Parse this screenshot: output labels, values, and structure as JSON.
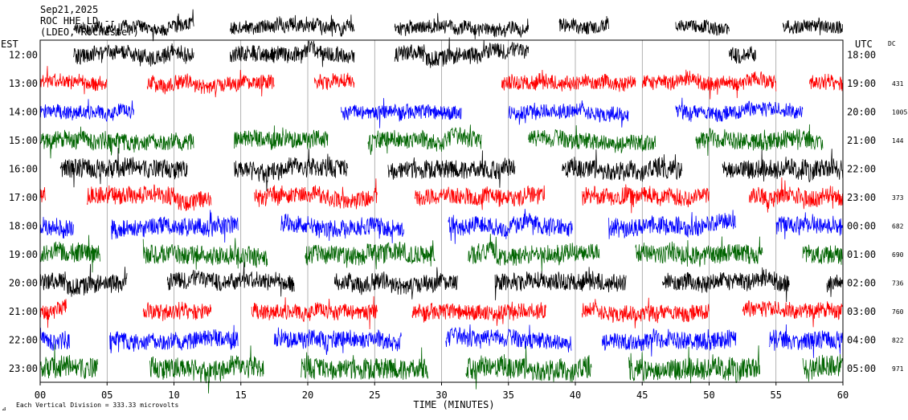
{
  "header": {
    "date": "Sep21,2025",
    "station": "ROC HHE LD --",
    "network": "(LDEO, Rochester)"
  },
  "labels": {
    "left_axis": "EST",
    "right_axis": "UTC",
    "dc_header": "DC",
    "x_axis_title": "TIME (MINUTES)",
    "footer_note": "Each Vertical Division =  333.33 microvolts"
  },
  "colors": {
    "black": "#000000",
    "red": "#ff0000",
    "blue": "#0000ff",
    "green": "#006400",
    "grid": "#808080"
  },
  "chart_data": {
    "type": "line",
    "title": "Sep21,2025  ROC HHE LD --  (LDEO, Rochester)",
    "xlabel": "TIME (MINUTES)",
    "xlim": [
      0,
      60
    ],
    "x_ticks": [
      "00",
      "05",
      "10",
      "15",
      "20",
      "25",
      "30",
      "35",
      "40",
      "45",
      "50",
      "55",
      "60"
    ],
    "rows": [
      {
        "est": "",
        "utc": "",
        "dc": "",
        "color": "black",
        "amplitude": 0.45,
        "segments": [
          [
            2.5,
            11.5
          ],
          [
            14.2,
            23.5
          ],
          [
            26.5,
            36.5
          ],
          [
            38.8,
            42.5
          ],
          [
            47.5,
            51.5
          ],
          [
            55.5,
            60
          ]
        ]
      },
      {
        "est": "12:00",
        "utc": "18:00",
        "dc": "",
        "color": "black",
        "amplitude": 0.55,
        "segments": [
          [
            2.5,
            11.5
          ],
          [
            14.2,
            23.5
          ],
          [
            26.5,
            36.5
          ],
          [
            51.5,
            53.5
          ]
        ]
      },
      {
        "est": "13:00",
        "utc": "19:00",
        "dc": "431",
        "color": "red",
        "amplitude": 0.5,
        "segments": [
          [
            0,
            5
          ],
          [
            8,
            17.5
          ],
          [
            20.5,
            23.5
          ],
          [
            34.5,
            44.5
          ],
          [
            45,
            55
          ],
          [
            57.5,
            60
          ]
        ]
      },
      {
        "est": "14:00",
        "utc": "20:00",
        "dc": "1005",
        "color": "blue",
        "amplitude": 0.5,
        "segments": [
          [
            0,
            7
          ],
          [
            22.5,
            31.5
          ],
          [
            35,
            44
          ],
          [
            47.5,
            57
          ]
        ]
      },
      {
        "est": "15:00",
        "utc": "21:00",
        "dc": "144",
        "color": "green",
        "amplitude": 0.6,
        "segments": [
          [
            0,
            11.5
          ],
          [
            14.5,
            21.5
          ],
          [
            24.5,
            33
          ],
          [
            36.5,
            46
          ],
          [
            49,
            58.5
          ]
        ]
      },
      {
        "est": "16:00",
        "utc": "22:00",
        "dc": "",
        "color": "black",
        "amplitude": 0.65,
        "segments": [
          [
            1.5,
            11
          ],
          [
            14.5,
            23
          ],
          [
            26,
            35.5
          ],
          [
            39,
            48
          ],
          [
            51,
            60
          ]
        ]
      },
      {
        "est": "17:00",
        "utc": "23:00",
        "dc": "373",
        "color": "red",
        "amplitude": 0.6,
        "segments": [
          [
            0,
            0.4
          ],
          [
            3.5,
            12.8
          ],
          [
            16,
            25.2
          ],
          [
            28,
            37.7
          ],
          [
            40.5,
            50
          ],
          [
            53,
            60
          ]
        ]
      },
      {
        "est": "18:00",
        "utc": "00:00",
        "dc": "682",
        "color": "blue",
        "amplitude": 0.6,
        "segments": [
          [
            0,
            2.5
          ],
          [
            5.3,
            14.8
          ],
          [
            18,
            27.2
          ],
          [
            30.5,
            39.8
          ],
          [
            42.5,
            52
          ],
          [
            55,
            60
          ]
        ]
      },
      {
        "est": "19:00",
        "utc": "01:00",
        "dc": "690",
        "color": "green",
        "amplitude": 0.65,
        "segments": [
          [
            0,
            4.5
          ],
          [
            7.7,
            17
          ],
          [
            19.8,
            29.5
          ],
          [
            32,
            41.8
          ],
          [
            44.5,
            54
          ],
          [
            57,
            60
          ]
        ]
      },
      {
        "est": "20:00",
        "utc": "02:00",
        "dc": "736",
        "color": "black",
        "amplitude": 0.6,
        "segments": [
          [
            0,
            6.5
          ],
          [
            9.5,
            19
          ],
          [
            22,
            31.2
          ],
          [
            34,
            43.8
          ],
          [
            46.5,
            56
          ],
          [
            58.8,
            60
          ]
        ]
      },
      {
        "est": "21:00",
        "utc": "03:00",
        "dc": "760",
        "color": "red",
        "amplitude": 0.55,
        "segments": [
          [
            0,
            2
          ],
          [
            7.7,
            12.8
          ],
          [
            15.8,
            25.2
          ],
          [
            27.8,
            37.8
          ],
          [
            40.5,
            50
          ],
          [
            52.5,
            60
          ]
        ]
      },
      {
        "est": "22:00",
        "utc": "04:00",
        "dc": "822",
        "color": "blue",
        "amplitude": 0.6,
        "segments": [
          [
            0,
            2.2
          ],
          [
            5.2,
            14.8
          ],
          [
            17.5,
            27
          ],
          [
            30.3,
            39.7
          ],
          [
            42,
            52
          ],
          [
            54.5,
            60
          ]
        ]
      },
      {
        "est": "23:00",
        "utc": "05:00",
        "dc": "971",
        "color": "green",
        "amplitude": 0.75,
        "segments": [
          [
            0,
            4.3
          ],
          [
            8.2,
            16.7
          ],
          [
            19.5,
            29
          ],
          [
            31.8,
            41.2
          ],
          [
            44,
            53.8
          ],
          [
            57,
            60
          ]
        ]
      }
    ]
  }
}
